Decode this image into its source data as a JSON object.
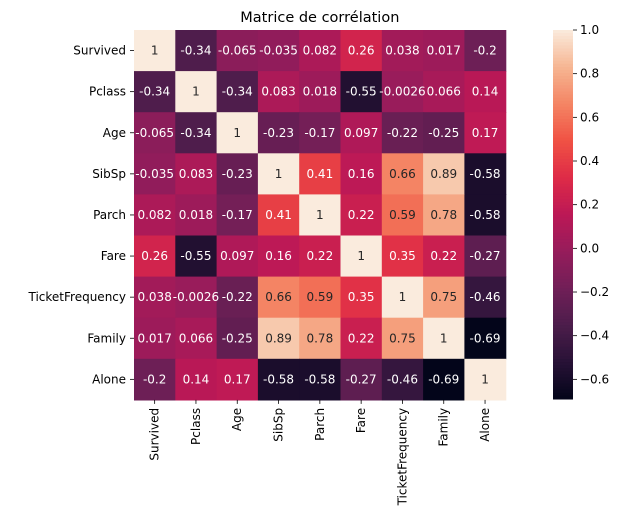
{
  "chart_data": {
    "type": "heatmap",
    "title": "Matrice de corrélation",
    "xlabel": "",
    "ylabel": "",
    "labels": [
      "Survived",
      "Pclass",
      "Age",
      "SibSp",
      "Parch",
      "Fare",
      "TicketFrequency",
      "Family",
      "Alone"
    ],
    "matrix": [
      [
        1,
        -0.34,
        -0.065,
        -0.035,
        0.082,
        0.26,
        0.038,
        0.017,
        -0.2
      ],
      [
        -0.34,
        1,
        -0.34,
        0.083,
        0.018,
        -0.55,
        -0.0026,
        0.066,
        0.14
      ],
      [
        -0.065,
        -0.34,
        1,
        -0.23,
        -0.17,
        0.097,
        -0.22,
        -0.25,
        0.17
      ],
      [
        -0.035,
        0.083,
        -0.23,
        1,
        0.41,
        0.16,
        0.66,
        0.89,
        -0.58
      ],
      [
        0.082,
        0.018,
        -0.17,
        0.41,
        1,
        0.22,
        0.59,
        0.78,
        -0.58
      ],
      [
        0.26,
        -0.55,
        0.097,
        0.16,
        0.22,
        1,
        0.35,
        0.22,
        -0.27
      ],
      [
        0.038,
        -0.0026,
        -0.22,
        0.66,
        0.59,
        0.35,
        1,
        0.75,
        -0.46
      ],
      [
        0.017,
        0.066,
        -0.25,
        0.89,
        0.78,
        0.22,
        0.75,
        1,
        -0.69
      ],
      [
        -0.2,
        0.14,
        0.17,
        -0.58,
        -0.58,
        -0.27,
        -0.46,
        -0.69,
        1
      ]
    ],
    "annotations": [
      [
        "1",
        "-0.34",
        "-0.065",
        "-0.035",
        "0.082",
        "0.26",
        "0.038",
        "0.017",
        "-0.2"
      ],
      [
        "-0.34",
        "1",
        "-0.34",
        "0.083",
        "0.018",
        "-0.55",
        "-0.0026",
        "0.066",
        "0.14"
      ],
      [
        "-0.065",
        "-0.34",
        "1",
        "-0.23",
        "-0.17",
        "0.097",
        "-0.22",
        "-0.25",
        "0.17"
      ],
      [
        "-0.035",
        "0.083",
        "-0.23",
        "1",
        "0.41",
        "0.16",
        "0.66",
        "0.89",
        "-0.58"
      ],
      [
        "0.082",
        "0.018",
        "-0.17",
        "0.41",
        "1",
        "0.22",
        "0.59",
        "0.78",
        "-0.58"
      ],
      [
        "0.26",
        "-0.55",
        "0.097",
        "0.16",
        "0.22",
        "1",
        "0.35",
        "0.22",
        "-0.27"
      ],
      [
        "0.038",
        "-0.0026",
        "-0.22",
        "0.66",
        "0.59",
        "0.35",
        "1",
        "0.75",
        "-0.46"
      ],
      [
        "0.017",
        "0.066",
        "-0.25",
        "0.89",
        "0.78",
        "0.22",
        "0.75",
        "1",
        "-0.69"
      ],
      [
        "-0.2",
        "0.14",
        "0.17",
        "-0.58",
        "-0.58",
        "-0.27",
        "-0.46",
        "-0.69",
        "1"
      ]
    ],
    "colormap": "rocket",
    "colorbar": {
      "vmin": -0.69,
      "vmax": 1,
      "ticks": [
        -0.6,
        -0.4,
        -0.2,
        0.0,
        0.2,
        0.4,
        0.6,
        0.8,
        1.0
      ],
      "tick_labels": [
        "−0.6",
        "−0.4",
        "−0.2",
        "0.0",
        "0.2",
        "0.4",
        "0.6",
        "0.8",
        "1.0"
      ]
    },
    "grid": false
  }
}
